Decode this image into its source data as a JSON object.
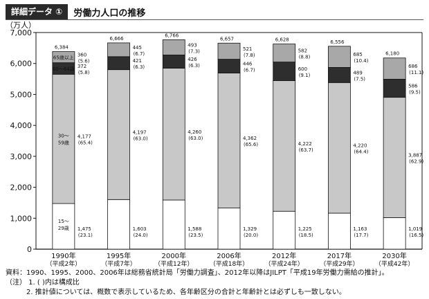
{
  "header": {
    "badge": "詳細データ ①",
    "title": "労働力人口の推移"
  },
  "chart_data": {
    "type": "bar",
    "stacked": true,
    "ylabel": "（万人）",
    "ylim": [
      0,
      7000
    ],
    "yticks": [
      "0",
      "1,000",
      "2,000",
      "3,000",
      "4,000",
      "5,000",
      "6,000",
      "7,000"
    ],
    "ytick_values": [
      0,
      1000,
      2000,
      3000,
      4000,
      5000,
      6000,
      7000
    ],
    "categories": [
      "1990年",
      "1995年",
      "2000年",
      "2006年",
      "2012年",
      "2017年",
      "2030年"
    ],
    "subcategories": [
      "（平成2年）",
      "（平成7年）",
      "（平成12年）",
      "（平成18年）",
      "（平成24年）",
      "（平成29年）",
      "（平成42年）"
    ],
    "totals": [
      "6,384",
      "6,666",
      "6,766",
      "6,657",
      "6,628",
      "6,556",
      "6,180"
    ],
    "total_values": [
      6384,
      6666,
      6766,
      6657,
      6628,
      6556,
      6180
    ],
    "series": [
      {
        "name": "15～29歳",
        "color": "#ffffff",
        "values": [
          1475,
          1603,
          1588,
          1329,
          1225,
          1163,
          1019
        ],
        "labels": [
          "1,475",
          "1,603",
          "1,588",
          "1,329",
          "1,225",
          "1,163",
          "1,019"
        ],
        "shares": [
          "(23.1)",
          "(24.0)",
          "(23.5)",
          "(20.0)",
          "(18.5)",
          "(17.7)",
          "(16.5)"
        ]
      },
      {
        "name": "30～59歳",
        "color": "#c8c8c8",
        "values": [
          4177,
          4197,
          4260,
          4362,
          4222,
          4220,
          3887
        ],
        "labels": [
          "4,177",
          "4,197",
          "4,260",
          "4,362",
          "4,222",
          "4,220",
          "3,887"
        ],
        "shares": [
          "(65.4)",
          "(63.0)",
          "(63.0)",
          "(65.6)",
          "(63.7)",
          "(64.4)",
          "(62.9)"
        ]
      },
      {
        "name": "60～64歳",
        "color": "#2e2e2e",
        "values": [
          372,
          421,
          426,
          446,
          600,
          489,
          586
        ],
        "labels": [
          "372",
          "421",
          "426",
          "446",
          "600",
          "489",
          "586"
        ],
        "shares": [
          "(5.8)",
          "(6.3)",
          "(6.3)",
          "(6.7)",
          "(9.1)",
          "(7.5)",
          "(9.5)"
        ]
      },
      {
        "name": "65歳以上",
        "color": "#a8a8a8",
        "values": [
          360,
          445,
          493,
          521,
          582,
          685,
          686
        ],
        "labels": [
          "360",
          "445",
          "493",
          "521",
          "582",
          "685",
          "686"
        ],
        "shares": [
          "(5.6)",
          "(6.7)",
          "(7.3)",
          "(7.8)",
          "(8.8)",
          "(10.4)",
          "(11.1)"
        ]
      }
    ],
    "series_label_lines": [
      [
        "15～",
        "29歳"
      ],
      [
        "30～",
        "59歳"
      ],
      [
        "60～",
        "64歳"
      ],
      [
        "65歳",
        "以上"
      ]
    ]
  },
  "notes": {
    "source": "資料：1990、1995、2000、2006年は総務省統計局「労働力調査」、2012年以降はJILPT「平成19年労働力需給の推計」。",
    "note1": "（注） 1. ( )内は構成比",
    "note2": "2. 推計値については、概数で表示しているため、各年齢区分の合計と年齢計とは必ずしも一致しない。"
  }
}
